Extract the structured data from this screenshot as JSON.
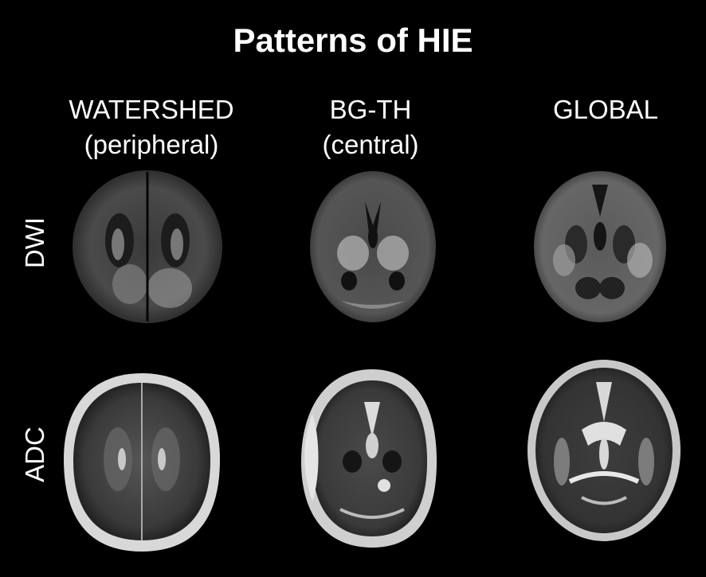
{
  "title": "Patterns of HIE",
  "columns": [
    {
      "line1": "WATERSHED",
      "line2": "(peripheral)"
    },
    {
      "line1": "BG-TH",
      "line2": "(central)"
    },
    {
      "line1": "GLOBAL",
      "line2": ""
    }
  ],
  "rows": [
    "DWI",
    "ADC"
  ]
}
